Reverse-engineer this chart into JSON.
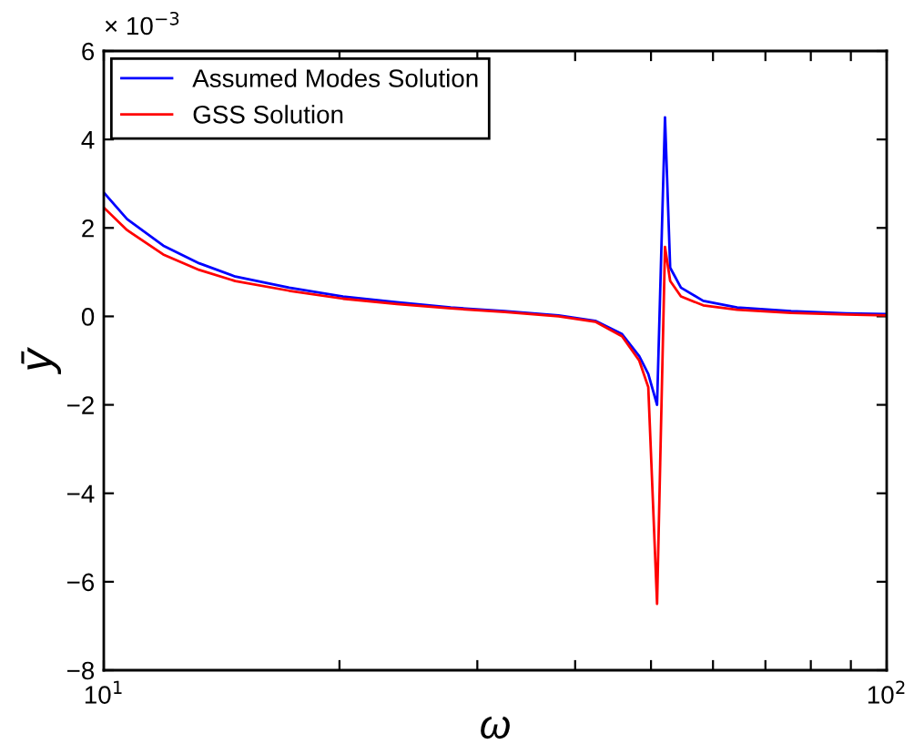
{
  "chart_data": {
    "type": "line",
    "xlabel": "ω",
    "ylabel": "ȳ",
    "log": "x",
    "annotations": [
      "× 10$^{−3}$"
    ],
    "series": [
      {
        "name": "Assumed Modes Solution",
        "color": "#0000ff",
        "x": [
          10,
          10.71,
          11.91,
          13.24,
          14.72,
          17.25,
          20.21,
          23.68,
          27.75,
          32.52,
          38.1,
          42.44,
          45.91,
          48.3,
          49.6,
          50.9,
          52.1,
          52.9,
          54.6,
          58.3,
          64.4,
          75.5,
          88.8,
          100
        ],
        "values": [
          2.8,
          2.2,
          1.6,
          1.2,
          0.9,
          0.65,
          0.45,
          0.32,
          0.2,
          0.12,
          0.02,
          -0.1,
          -0.4,
          -0.9,
          -1.3,
          -2.0,
          4.5,
          1.1,
          0.65,
          0.35,
          0.2,
          0.12,
          0.07,
          0.05
        ]
      },
      {
        "name": "GSS Solution",
        "color": "#ff0000",
        "x": [
          10,
          10.71,
          11.91,
          13.24,
          14.72,
          17.25,
          20.21,
          23.68,
          27.75,
          32.52,
          38.1,
          42.44,
          45.91,
          48.3,
          49.6,
          50.9,
          52.1,
          52.9,
          54.6,
          58.3,
          64.4,
          75.5,
          88.8,
          100
        ],
        "values": [
          2.46,
          1.95,
          1.4,
          1.05,
          0.8,
          0.58,
          0.4,
          0.28,
          0.18,
          0.1,
          0.0,
          -0.12,
          -0.45,
          -1.0,
          -1.6,
          -6.5,
          1.57,
          0.8,
          0.45,
          0.25,
          0.15,
          0.08,
          0.04,
          0.02
        ]
      }
    ],
    "xlim": [
      10,
      100
    ],
    "xticks": [
      {
        "value": 10,
        "label": "10$^{1}$"
      },
      {
        "value": 20,
        "label": null
      },
      {
        "value": 30,
        "label": null
      },
      {
        "value": 40,
        "label": null
      },
      {
        "value": 50,
        "label": null
      },
      {
        "value": 60,
        "label": null
      },
      {
        "value": 70,
        "label": null
      },
      {
        "value": 80,
        "label": null
      },
      {
        "value": 90,
        "label": null
      },
      {
        "value": 100,
        "label": "10$^{2}$"
      }
    ],
    "ylim": [
      -8,
      6
    ],
    "yticks": [
      -8,
      -6,
      -4,
      -2,
      0,
      2,
      4,
      6
    ],
    "grid": false,
    "legend": "top left",
    "line_style": "solid",
    "marker": "none"
  }
}
